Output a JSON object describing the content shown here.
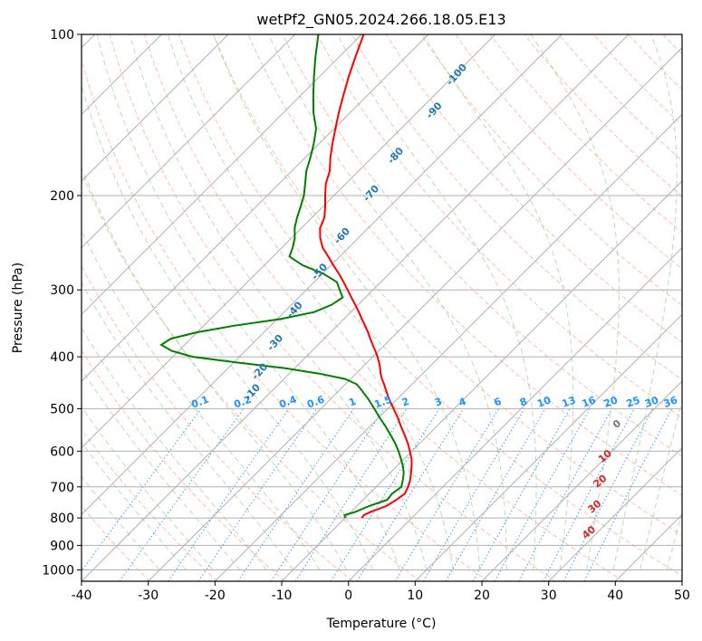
{
  "chart_data": {
    "type": "line",
    "subtype": "skew-t log-p diagram",
    "title": "wetPf2_GN05.2024.266.18.05.E13",
    "xlabel": "Temperature (°C)",
    "ylabel": "Pressure (hPa)",
    "xlim": [
      -40,
      50
    ],
    "ylim": [
      1050,
      100
    ],
    "y_scale": "log",
    "x_ticks": [
      -40,
      -30,
      -20,
      -10,
      0,
      10,
      20,
      30,
      40,
      50
    ],
    "y_ticks": [
      100,
      200,
      300,
      400,
      500,
      600,
      700,
      800,
      900,
      1000
    ],
    "grid": true,
    "series": [
      {
        "color": "#ff0000",
        "x_pressure_hPa": [
          800,
          790,
          780,
          760,
          740,
          720,
          700,
          680,
          660,
          640,
          620,
          600,
          580,
          560,
          540,
          520,
          500,
          480,
          460,
          450,
          440,
          430,
          420,
          410,
          400,
          390,
          380,
          370,
          360,
          350,
          340,
          330,
          320,
          310,
          300,
          290,
          280,
          270,
          260,
          250,
          240,
          230,
          220,
          210,
          200,
          190,
          180,
          170,
          160,
          150,
          140,
          130,
          120,
          110,
          100
        ],
        "y_temperature_C": [
          -7.5,
          -7.6,
          -7.1,
          -5.6,
          -5.0,
          -4.7,
          -5.2,
          -5.9,
          -6.8,
          -7.8,
          -8.9,
          -10.3,
          -11.8,
          -13.5,
          -15.3,
          -17.1,
          -19.1,
          -21.2,
          -23.2,
          -24.2,
          -25.3,
          -26.3,
          -27.2,
          -28.2,
          -29.3,
          -30.5,
          -31.8,
          -33.1,
          -34.4,
          -35.8,
          -37.3,
          -38.8,
          -40.4,
          -42.1,
          -43.8,
          -45.6,
          -47.5,
          -49.6,
          -51.7,
          -53.9,
          -55.7,
          -57.2,
          -58.1,
          -59.6,
          -61.3,
          -63.0,
          -64.3,
          -66.2,
          -68.0,
          -69.8,
          -71.7,
          -73.6,
          -75.6,
          -77.6,
          -79.7
        ]
      },
      {
        "color": "#008000",
        "x_pressure_hPa": [
          800,
          790,
          780,
          760,
          740,
          720,
          700,
          680,
          660,
          640,
          620,
          600,
          580,
          560,
          540,
          520,
          500,
          480,
          460,
          450,
          440,
          430,
          420,
          410,
          400,
          390,
          380,
          370,
          360,
          350,
          340,
          330,
          320,
          310,
          300,
          290,
          280,
          270,
          260,
          250,
          240,
          230,
          220,
          210,
          200,
          190,
          180,
          170,
          160,
          150,
          140,
          130,
          120,
          110,
          100
        ],
        "y_temperature_C": [
          -10.0,
          -10.5,
          -9.4,
          -8.2,
          -6.4,
          -6.6,
          -6.2,
          -7.0,
          -7.9,
          -9.1,
          -10.5,
          -12.0,
          -13.7,
          -15.6,
          -17.6,
          -19.8,
          -22.0,
          -24.3,
          -26.9,
          -28.3,
          -30.8,
          -35.5,
          -41.5,
          -49.5,
          -57.0,
          -61.0,
          -63.5,
          -63.0,
          -60.0,
          -55.5,
          -49.5,
          -45.5,
          -44.0,
          -43.4,
          -45.0,
          -46.6,
          -49.8,
          -54.2,
          -57.5,
          -58.4,
          -59.5,
          -61.0,
          -62.2,
          -63.3,
          -64.5,
          -66.1,
          -67.8,
          -69.2,
          -70.8,
          -72.7,
          -75.5,
          -78.1,
          -80.8,
          -83.6,
          -86.5
        ]
      }
    ],
    "dry_adiabats_C": [
      -100,
      -90,
      -80,
      -70,
      -60,
      -50,
      -40,
      -30,
      -20,
      -10
    ],
    "moist_adiabats_C": [
      0,
      10,
      20,
      30,
      40
    ],
    "mixing_ratios_gkg": [
      "0.1",
      "0.2",
      "0.4",
      "0.6",
      "1",
      "1.5",
      "2",
      "3",
      "4",
      "6",
      "8",
      "10",
      "13",
      "16",
      "20",
      "25",
      "30",
      "36"
    ],
    "colors": {
      "temperature": "#ff0000",
      "dewpoint": "#008000",
      "dry_adiabat_label": "#1f77b4",
      "moist_adiabat_label": "#d62728",
      "mixing_ratio": "#1e90ff",
      "dry_adiabat_line": "#ff8a65",
      "moist_adiabat_line": "#7fbf7f",
      "grid": "#b0b0b0"
    }
  }
}
